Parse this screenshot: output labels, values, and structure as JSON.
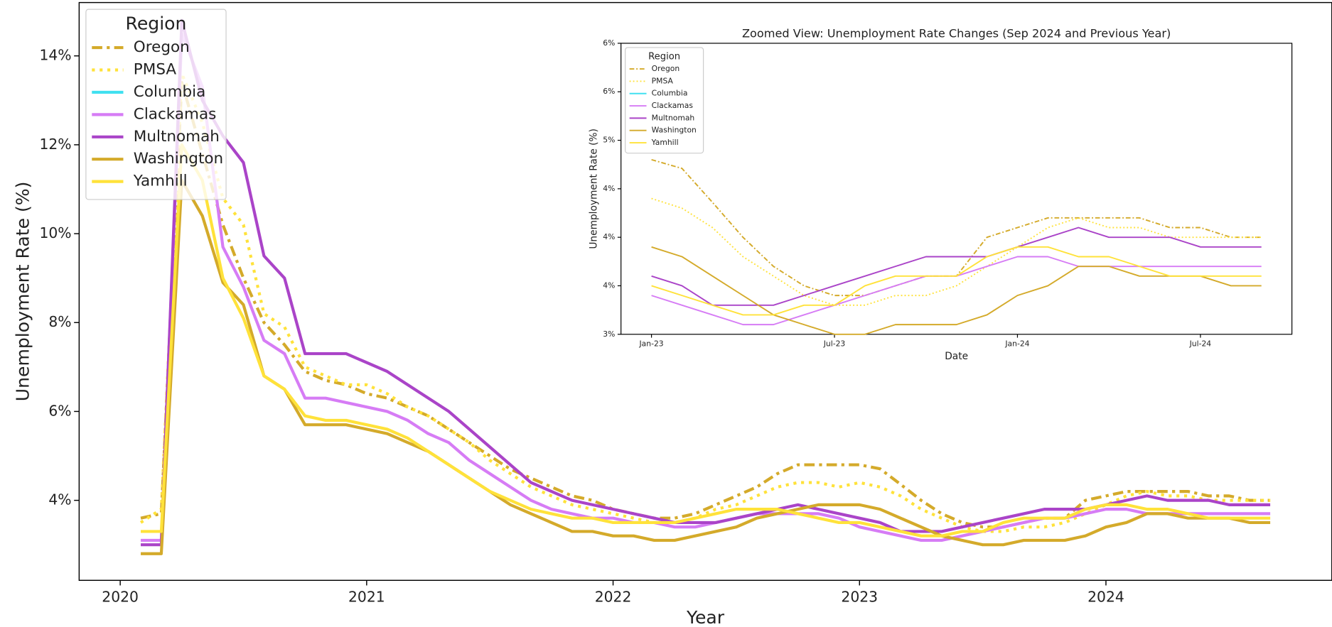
{
  "chart_data": [
    {
      "type": "line",
      "xlabel": "Year",
      "ylabel": "Unemployment Rate (%)",
      "legend_title": "Region",
      "legend": "upper left",
      "grid": false,
      "x": [
        "2020-02",
        "2020-03",
        "2020-04",
        "2020-05",
        "2020-06",
        "2020-07",
        "2020-08",
        "2020-09",
        "2020-10",
        "2020-11",
        "2020-12",
        "2021-01",
        "2021-02",
        "2021-03",
        "2021-04",
        "2021-05",
        "2021-06",
        "2021-07",
        "2021-08",
        "2021-09",
        "2021-10",
        "2021-11",
        "2021-12",
        "2022-01",
        "2022-02",
        "2022-03",
        "2022-04",
        "2022-05",
        "2022-06",
        "2022-07",
        "2022-08",
        "2022-09",
        "2022-10",
        "2022-11",
        "2022-12",
        "2023-01",
        "2023-02",
        "2023-03",
        "2023-04",
        "2023-05",
        "2023-06",
        "2023-07",
        "2023-08",
        "2023-09",
        "2023-10",
        "2023-11",
        "2023-12",
        "2024-01",
        "2024-02",
        "2024-03",
        "2024-04",
        "2024-05",
        "2024-06",
        "2024-07",
        "2024-08",
        "2024-09"
      ],
      "xlim": [
        "2019-11",
        "2024-12"
      ],
      "xticks": [
        {
          "value": "2020-01",
          "label": "2020"
        },
        {
          "value": "2021-01",
          "label": "2021"
        },
        {
          "value": "2022-01",
          "label": "2022"
        },
        {
          "value": "2023-01",
          "label": "2023"
        },
        {
          "value": "2024-01",
          "label": "2024"
        }
      ],
      "ylim": [
        2.2,
        15.2
      ],
      "yticks": [
        {
          "value": 4,
          "label": "4%"
        },
        {
          "value": 6,
          "label": "6%"
        },
        {
          "value": 8,
          "label": "8%"
        },
        {
          "value": 10,
          "label": "10%"
        },
        {
          "value": 12,
          "label": "12%"
        },
        {
          "value": 14,
          "label": "14%"
        }
      ],
      "series": [
        {
          "name": "Oregon",
          "color": "#d4aa2a",
          "linestyle": "dashdot",
          "values": [
            3.6,
            3.7,
            13.4,
            11.8,
            10.2,
            9.0,
            8.0,
            7.5,
            6.9,
            6.7,
            6.6,
            6.4,
            6.3,
            6.1,
            5.9,
            5.6,
            5.3,
            5.0,
            4.7,
            4.5,
            4.3,
            4.1,
            4.0,
            3.8,
            3.7,
            3.6,
            3.6,
            3.7,
            3.9,
            4.1,
            4.3,
            4.6,
            4.8,
            4.8,
            4.8,
            4.8,
            4.71,
            4.36,
            4.0,
            3.7,
            3.5,
            3.4,
            3.4,
            3.5,
            3.6,
            3.6,
            4.0,
            4.1,
            4.2,
            4.2,
            4.2,
            4.2,
            4.1,
            4.1,
            4.0,
            4.0
          ]
        },
        {
          "name": "PMSA",
          "color": "#ffe23a",
          "linestyle": "dotted",
          "values": [
            3.5,
            3.8,
            13.6,
            12.5,
            10.8,
            10.2,
            8.2,
            7.9,
            7.0,
            6.8,
            6.6,
            6.6,
            6.4,
            6.1,
            5.9,
            5.6,
            5.3,
            4.9,
            4.6,
            4.3,
            4.1,
            3.9,
            3.8,
            3.7,
            3.6,
            3.5,
            3.5,
            3.6,
            3.8,
            3.9,
            4.1,
            4.3,
            4.4,
            4.4,
            4.3,
            4.4,
            4.3,
            4.1,
            3.8,
            3.6,
            3.4,
            3.3,
            3.3,
            3.4,
            3.4,
            3.5,
            3.7,
            3.9,
            4.1,
            4.2,
            4.1,
            4.1,
            4.0,
            4.0,
            4.0,
            4.0
          ]
        },
        {
          "name": "Columbia",
          "color": "#40e0f0",
          "linestyle": "solid",
          "values": [
            null,
            null,
            null,
            null,
            null,
            null,
            null,
            null,
            null,
            null,
            null,
            null,
            null,
            null,
            null,
            null,
            null,
            null,
            null,
            null,
            null,
            null,
            null,
            null,
            null,
            null,
            null,
            null,
            null,
            null,
            null,
            null,
            null,
            null,
            null,
            null,
            null,
            null,
            null,
            null,
            null,
            null,
            null,
            null,
            null,
            null,
            null,
            null,
            null,
            null,
            null,
            null,
            null,
            null,
            null,
            null
          ]
        },
        {
          "name": "Clackamas",
          "color": "#d67cf5",
          "linestyle": "solid",
          "values": [
            3.1,
            3.1,
            14.5,
            13.3,
            9.7,
            8.8,
            7.6,
            7.3,
            6.3,
            6.3,
            6.2,
            6.1,
            6.0,
            5.8,
            5.5,
            5.3,
            4.9,
            4.6,
            4.3,
            4.0,
            3.8,
            3.7,
            3.6,
            3.6,
            3.5,
            3.5,
            3.4,
            3.4,
            3.5,
            3.6,
            3.7,
            3.7,
            3.7,
            3.7,
            3.6,
            3.4,
            3.3,
            3.2,
            3.1,
            3.1,
            3.2,
            3.3,
            3.4,
            3.5,
            3.6,
            3.6,
            3.7,
            3.8,
            3.8,
            3.7,
            3.7,
            3.7,
            3.7,
            3.7,
            3.7,
            3.7
          ]
        },
        {
          "name": "Multnomah",
          "color": "#aa44c8",
          "linestyle": "solid",
          "values": [
            3.0,
            3.0,
            14.8,
            13.0,
            12.2,
            11.6,
            9.5,
            9.0,
            7.3,
            7.3,
            7.3,
            7.1,
            6.9,
            6.6,
            6.3,
            6.0,
            5.6,
            5.2,
            4.8,
            4.4,
            4.2,
            4.0,
            3.9,
            3.8,
            3.7,
            3.6,
            3.5,
            3.5,
            3.5,
            3.6,
            3.7,
            3.8,
            3.9,
            3.8,
            3.7,
            3.6,
            3.5,
            3.3,
            3.3,
            3.3,
            3.4,
            3.5,
            3.6,
            3.7,
            3.8,
            3.8,
            3.8,
            3.9,
            4.0,
            4.1,
            4.0,
            4.0,
            4.0,
            3.9,
            3.9,
            3.9
          ]
        },
        {
          "name": "Washington",
          "color": "#d4aa2a",
          "linestyle": "solid",
          "values": [
            2.8,
            2.8,
            11.2,
            10.4,
            8.9,
            8.4,
            6.8,
            6.5,
            5.7,
            5.7,
            5.7,
            5.6,
            5.5,
            5.3,
            5.1,
            4.8,
            4.5,
            4.2,
            3.9,
            3.7,
            3.5,
            3.3,
            3.3,
            3.2,
            3.2,
            3.1,
            3.1,
            3.2,
            3.3,
            3.4,
            3.6,
            3.7,
            3.8,
            3.9,
            3.9,
            3.9,
            3.8,
            3.6,
            3.4,
            3.2,
            3.1,
            3.0,
            3.0,
            3.1,
            3.1,
            3.1,
            3.2,
            3.4,
            3.5,
            3.7,
            3.7,
            3.6,
            3.6,
            3.6,
            3.5,
            3.5
          ]
        },
        {
          "name": "Yamhill",
          "color": "#ffe23a",
          "linestyle": "solid",
          "values": [
            3.3,
            3.3,
            12.0,
            11.2,
            9.0,
            8.1,
            6.8,
            6.5,
            5.9,
            5.8,
            5.8,
            5.7,
            5.6,
            5.4,
            5.1,
            4.8,
            4.5,
            4.2,
            4.0,
            3.8,
            3.7,
            3.6,
            3.6,
            3.5,
            3.5,
            3.5,
            3.5,
            3.6,
            3.7,
            3.8,
            3.8,
            3.8,
            3.7,
            3.6,
            3.5,
            3.5,
            3.4,
            3.3,
            3.2,
            3.2,
            3.3,
            3.3,
            3.5,
            3.6,
            3.6,
            3.6,
            3.8,
            3.9,
            3.9,
            3.8,
            3.8,
            3.7,
            3.6,
            3.6,
            3.6,
            3.6
          ]
        }
      ]
    },
    {
      "type": "line",
      "title": "Zoomed View: Unemployment Rate Changes (Sep 2024 and Previous Year)",
      "xlabel": "Date",
      "ylabel": "Unemployment Rate (%)",
      "legend_title": "Region",
      "legend": "upper left",
      "grid": false,
      "x": [
        "2023-01",
        "2023-02",
        "2023-03",
        "2023-04",
        "2023-05",
        "2023-06",
        "2023-07",
        "2023-08",
        "2023-09",
        "2023-10",
        "2023-11",
        "2023-12",
        "2024-01",
        "2024-02",
        "2024-03",
        "2024-04",
        "2024-05",
        "2024-06",
        "2024-07",
        "2024-08",
        "2024-09"
      ],
      "xlim": [
        "2022-12",
        "2024-10"
      ],
      "xticks": [
        {
          "value": "2023-01",
          "label": "Jan-23"
        },
        {
          "value": "2023-07",
          "label": "Jul-23"
        },
        {
          "value": "2024-01",
          "label": "Jan-24"
        },
        {
          "value": "2024-07",
          "label": "Jul-24"
        }
      ],
      "ylim": [
        3,
        6
      ],
      "yticks": [
        {
          "value": 3,
          "label": "3%"
        },
        {
          "value": 3.5,
          "label": "4%"
        },
        {
          "value": 4,
          "label": "4%"
        },
        {
          "value": 4.5,
          "label": "4%"
        },
        {
          "value": 5,
          "label": "5%"
        },
        {
          "value": 5.5,
          "label": "6%"
        },
        {
          "value": 6,
          "label": "6%"
        }
      ],
      "series": [
        {
          "name": "Oregon",
          "color": "#d4aa2a",
          "linestyle": "dashdot",
          "values": [
            4.8,
            4.71,
            4.36,
            4.0,
            3.7,
            3.5,
            3.4,
            3.4,
            3.5,
            3.6,
            3.6,
            4.0,
            4.1,
            4.2,
            4.2,
            4.2,
            4.2,
            4.1,
            4.1,
            4.0,
            4.0
          ]
        },
        {
          "name": "PMSA",
          "color": "#ffe23a",
          "linestyle": "dotted",
          "values": [
            4.4,
            4.3,
            4.1,
            3.8,
            3.6,
            3.4,
            3.3,
            3.3,
            3.4,
            3.4,
            3.5,
            3.7,
            3.9,
            4.1,
            4.2,
            4.1,
            4.1,
            4.0,
            4.0,
            4.0,
            4.0
          ]
        },
        {
          "name": "Columbia",
          "color": "#40e0f0",
          "linestyle": "solid",
          "values": [
            null,
            null,
            null,
            null,
            null,
            null,
            null,
            null,
            null,
            null,
            null,
            null,
            null,
            null,
            null,
            null,
            null,
            null,
            null,
            null,
            null
          ]
        },
        {
          "name": "Clackamas",
          "color": "#d67cf5",
          "linestyle": "solid",
          "values": [
            3.4,
            3.3,
            3.2,
            3.1,
            3.1,
            3.2,
            3.3,
            3.4,
            3.5,
            3.6,
            3.6,
            3.7,
            3.8,
            3.8,
            3.7,
            3.7,
            3.7,
            3.7,
            3.7,
            3.7,
            3.7
          ]
        },
        {
          "name": "Multnomah",
          "color": "#aa44c8",
          "linestyle": "solid",
          "values": [
            3.6,
            3.5,
            3.3,
            3.3,
            3.3,
            3.4,
            3.5,
            3.6,
            3.7,
            3.8,
            3.8,
            3.8,
            3.9,
            4.0,
            4.1,
            4.0,
            4.0,
            4.0,
            3.9,
            3.9,
            3.9
          ]
        },
        {
          "name": "Washington",
          "color": "#d4aa2a",
          "linestyle": "solid",
          "values": [
            3.9,
            3.8,
            3.6,
            3.4,
            3.2,
            3.1,
            3.0,
            3.0,
            3.1,
            3.1,
            3.1,
            3.2,
            3.4,
            3.5,
            3.7,
            3.7,
            3.6,
            3.6,
            3.6,
            3.5,
            3.5
          ]
        },
        {
          "name": "Yamhill",
          "color": "#ffe23a",
          "linestyle": "solid",
          "values": [
            3.5,
            3.4,
            3.3,
            3.2,
            3.2,
            3.3,
            3.3,
            3.5,
            3.6,
            3.6,
            3.6,
            3.8,
            3.9,
            3.9,
            3.8,
            3.8,
            3.7,
            3.6,
            3.6,
            3.6,
            3.6
          ]
        }
      ]
    }
  ]
}
